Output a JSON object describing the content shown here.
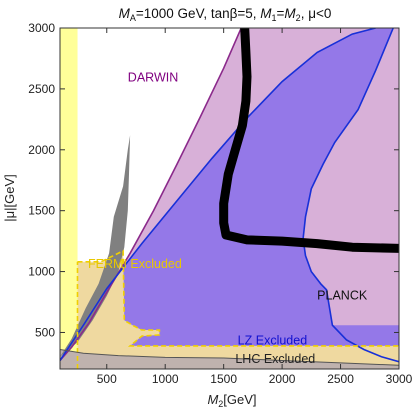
{
  "chart_data": {
    "type": "area",
    "title": "M_A=1000 GeV, tanβ=5, M_1=M_2, μ<0",
    "title_parts": {
      "ma": "M",
      "ma_sub": "A",
      "ma_rest": "=1000 GeV, tanβ=5, ",
      "m1": "M",
      "m1_sub": "1",
      "eq": "=",
      "m2": "M",
      "m2_sub": "2",
      "mu": ", μ<0"
    },
    "xlabel": "M2[GeV]",
    "xlabel_parts": {
      "m": "M",
      "sub": "2",
      "unit": "[GeV]"
    },
    "ylabel": "|μ|[GeV]",
    "xlim": [
      100,
      3000
    ],
    "ylim": [
      200,
      3000
    ],
    "xticks": [
      500,
      1000,
      1500,
      2000,
      2500,
      3000
    ],
    "yticks": [
      500,
      1000,
      1500,
      2000,
      2500,
      3000
    ],
    "regions": [
      {
        "name": "DARWIN",
        "color": "#D8B0D8",
        "label_color": "#800080",
        "boundary": [
          [
            100,
            270
          ],
          [
            200,
            380
          ],
          [
            350,
            580
          ],
          [
            500,
            830
          ],
          [
            700,
            1150
          ],
          [
            900,
            1500
          ],
          [
            1100,
            1880
          ],
          [
            1300,
            2270
          ],
          [
            1500,
            2670
          ],
          [
            1650,
            3000
          ]
        ]
      },
      {
        "name": "LZ Excluded",
        "color": "#9478E8",
        "label_color": "#1010D0",
        "boundary": [
          [
            100,
            270
          ],
          [
            300,
            560
          ],
          [
            500,
            860
          ],
          [
            800,
            1230
          ],
          [
            1100,
            1580
          ],
          [
            1400,
            1930
          ],
          [
            1700,
            2260
          ],
          [
            2000,
            2560
          ],
          [
            2300,
            2800
          ],
          [
            2600,
            2950
          ],
          [
            2800,
            3000
          ]
        ]
      },
      {
        "name": "PLANCK",
        "color": "#D8B0D8",
        "label_color": "#111111",
        "boundary": [
          [
            2950,
            3000
          ],
          [
            2800,
            2650
          ],
          [
            2650,
            2330
          ],
          [
            2450,
            2060
          ],
          [
            2350,
            1880
          ],
          [
            2250,
            1680
          ],
          [
            2200,
            1450
          ],
          [
            2180,
            1270
          ],
          [
            2200,
            1130
          ],
          [
            2250,
            1000
          ],
          [
            2330,
            900
          ],
          [
            2380,
            850
          ]
        ]
      },
      {
        "name": "FERMI Excluded",
        "color": "#EFD9A0",
        "label_color": "#E8C800",
        "boundary": [
          [
            250,
            200
          ],
          [
            250,
            1080
          ],
          [
            450,
            1080
          ],
          [
            640,
            1170
          ],
          [
            650,
            600
          ],
          [
            720,
            560
          ],
          [
            800,
            520
          ],
          [
            950,
            520
          ],
          [
            950,
            480
          ],
          [
            800,
            470
          ],
          [
            700,
            390
          ],
          [
            1000,
            390
          ],
          [
            1500,
            390
          ],
          [
            2000,
            390
          ],
          [
            2500,
            390
          ],
          [
            3000,
            390
          ]
        ]
      },
      {
        "name": "LHC Excluded",
        "color": "#BFB2AE",
        "label_color": "#222222",
        "boundary": [
          [
            100,
            360
          ],
          [
            300,
            330
          ],
          [
            600,
            310
          ],
          [
            1000,
            295
          ],
          [
            1500,
            290
          ],
          [
            2000,
            270
          ],
          [
            2500,
            250
          ],
          [
            3000,
            230
          ]
        ]
      }
    ],
    "black_band": [
      [
        1680,
        3000
      ],
      [
        1690,
        2800
      ],
      [
        1700,
        2600
      ],
      [
        1690,
        2400
      ],
      [
        1660,
        2200
      ],
      [
        1600,
        2000
      ],
      [
        1540,
        1800
      ],
      [
        1500,
        1560
      ],
      [
        1500,
        1400
      ],
      [
        1520,
        1300
      ],
      [
        1700,
        1260
      ],
      [
        2000,
        1250
      ],
      [
        2300,
        1230
      ],
      [
        2600,
        1200
      ],
      [
        3000,
        1190
      ]
    ],
    "gray_region": [
      [
        100,
        300
      ],
      [
        200,
        450
      ],
      [
        320,
        700
      ],
      [
        430,
        900
      ],
      [
        520,
        1150
      ],
      [
        560,
        1450
      ],
      [
        640,
        1700
      ],
      [
        680,
        2000
      ],
      [
        700,
        2120
      ],
      [
        690,
        1800
      ],
      [
        680,
        1500
      ],
      [
        650,
        1200
      ],
      [
        600,
        1000
      ],
      [
        500,
        800
      ],
      [
        380,
        600
      ],
      [
        250,
        420
      ],
      [
        100,
        300
      ]
    ],
    "yellow_band": {
      "x": [
        100,
        250
      ],
      "color": "#FFFF99"
    }
  }
}
